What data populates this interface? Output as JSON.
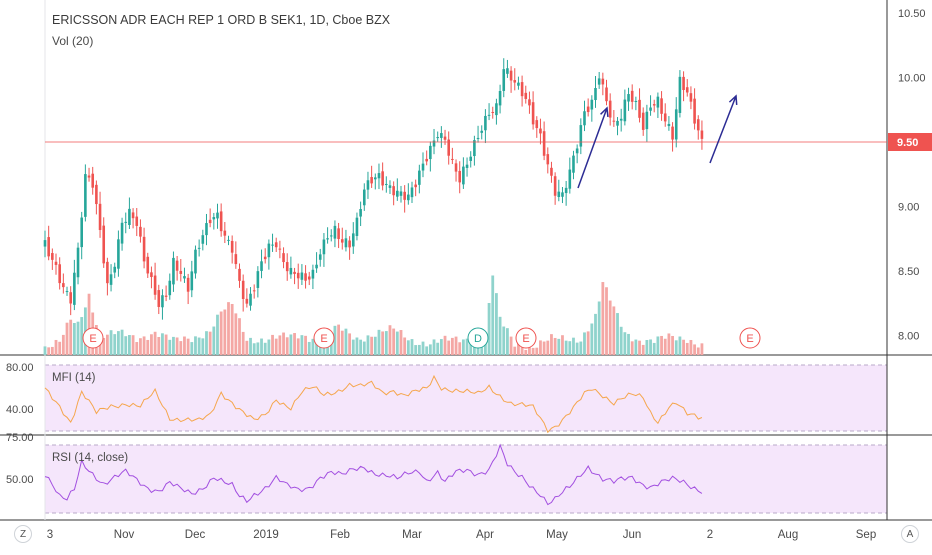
{
  "colors": {
    "up": "#26a69a",
    "down": "#ef5350",
    "volUp": "#8fd3cc",
    "volDown": "#f4a7a4",
    "mfi": "#f5a64d",
    "rsi": "#a24fe0",
    "panelFill": "#f5e6fb",
    "priceLine": "#ef5350",
    "arrow": "#2c2c94"
  },
  "header": {
    "title": "ERICSSON ADR EACH REP 1 ORD B SEK1, 1D, Cboe BZX",
    "vol_label": "Vol (20)"
  },
  "price_label": "9.50",
  "y_ticks": [
    "10.50",
    "10.00",
    "9.50",
    "9.00",
    "8.50",
    "8.00"
  ],
  "mfi": {
    "label": "MFI (14)",
    "ticks": [
      "80.00",
      "40.00"
    ]
  },
  "rsi": {
    "label": "RSI (14, close)",
    "ticks": [
      "75.00",
      "50.00"
    ]
  },
  "x_ticks": [
    "3",
    "Nov",
    "Dec",
    "2019",
    "Feb",
    "Mar",
    "Apr",
    "May",
    "Jun",
    "2",
    "Aug",
    "Sep"
  ],
  "buttons": {
    "left": "Z",
    "right": "A"
  },
  "event_markers": [
    "E",
    "E",
    "D",
    "E",
    "E"
  ],
  "chart_data": {
    "type": "candlestick",
    "title": "ERICSSON ADR EACH REP 1 ORD B SEK1, 1D, Cboe BZX",
    "ylim": [
      7.85,
      10.6
    ],
    "last_price": 9.5,
    "close_anchors": [
      [
        0,
        8.7
      ],
      [
        3,
        8.55
      ],
      [
        5,
        8.4
      ],
      [
        7,
        8.3
      ],
      [
        9,
        8.65
      ],
      [
        11,
        9.2
      ],
      [
        13,
        9.15
      ],
      [
        15,
        8.8
      ],
      [
        17,
        8.4
      ],
      [
        19,
        8.6
      ],
      [
        21,
        8.9
      ],
      [
        23,
        8.95
      ],
      [
        25,
        8.85
      ],
      [
        27,
        8.55
      ],
      [
        29,
        8.4
      ],
      [
        31,
        8.25
      ],
      [
        33,
        8.35
      ],
      [
        35,
        8.6
      ],
      [
        37,
        8.5
      ],
      [
        39,
        8.35
      ],
      [
        41,
        8.6
      ],
      [
        43,
        8.75
      ],
      [
        45,
        8.9
      ],
      [
        47,
        8.95
      ],
      [
        49,
        8.8
      ],
      [
        51,
        8.7
      ],
      [
        53,
        8.4
      ],
      [
        55,
        8.2
      ],
      [
        57,
        8.35
      ],
      [
        59,
        8.55
      ],
      [
        61,
        8.7
      ],
      [
        63,
        8.75
      ],
      [
        65,
        8.6
      ],
      [
        67,
        8.5
      ],
      [
        69,
        8.45
      ],
      [
        71,
        8.4
      ],
      [
        73,
        8.45
      ],
      [
        75,
        8.65
      ],
      [
        77,
        8.8
      ],
      [
        79,
        8.85
      ],
      [
        81,
        8.75
      ],
      [
        83,
        8.7
      ],
      [
        85,
        8.85
      ],
      [
        87,
        9.1
      ],
      [
        89,
        9.2
      ],
      [
        91,
        9.25
      ],
      [
        93,
        9.2
      ],
      [
        95,
        9.15
      ],
      [
        97,
        9.1
      ],
      [
        99,
        9.05
      ],
      [
        101,
        9.15
      ],
      [
        103,
        9.3
      ],
      [
        105,
        9.45
      ],
      [
        107,
        9.6
      ],
      [
        109,
        9.55
      ],
      [
        111,
        9.35
      ],
      [
        113,
        9.2
      ],
      [
        115,
        9.3
      ],
      [
        117,
        9.45
      ],
      [
        119,
        9.6
      ],
      [
        121,
        9.75
      ],
      [
        123,
        9.8
      ],
      [
        125,
        10.1
      ],
      [
        127,
        10.0
      ],
      [
        129,
        9.9
      ],
      [
        131,
        9.8
      ],
      [
        133,
        9.65
      ],
      [
        135,
        9.55
      ],
      [
        137,
        9.35
      ],
      [
        139,
        9.15
      ],
      [
        141,
        9.1
      ],
      [
        143,
        9.25
      ],
      [
        145,
        9.45
      ],
      [
        147,
        9.7
      ],
      [
        149,
        9.8
      ],
      [
        151,
        10.05
      ],
      [
        153,
        9.85
      ],
      [
        155,
        9.65
      ],
      [
        157,
        9.7
      ],
      [
        159,
        9.85
      ],
      [
        161,
        9.75
      ],
      [
        163,
        9.6
      ],
      [
        165,
        9.8
      ],
      [
        167,
        9.85
      ],
      [
        169,
        9.7
      ],
      [
        171,
        9.55
      ],
      [
        173,
        9.95
      ],
      [
        175,
        9.85
      ],
      [
        177,
        9.65
      ],
      [
        179,
        9.5
      ]
    ],
    "volume_anchors": [
      [
        0,
        4
      ],
      [
        4,
        6
      ],
      [
        7,
        18
      ],
      [
        9,
        16
      ],
      [
        12,
        32
      ],
      [
        15,
        10
      ],
      [
        20,
        11
      ],
      [
        25,
        9
      ],
      [
        30,
        12
      ],
      [
        35,
        7
      ],
      [
        40,
        9
      ],
      [
        45,
        13
      ],
      [
        48,
        22
      ],
      [
        51,
        26
      ],
      [
        55,
        9
      ],
      [
        60,
        8
      ],
      [
        65,
        9
      ],
      [
        70,
        11
      ],
      [
        75,
        8
      ],
      [
        80,
        14
      ],
      [
        85,
        9
      ],
      [
        90,
        11
      ],
      [
        95,
        13
      ],
      [
        100,
        8
      ],
      [
        105,
        6
      ],
      [
        108,
        7
      ],
      [
        112,
        8
      ],
      [
        116,
        9
      ],
      [
        120,
        10
      ],
      [
        122,
        42
      ],
      [
        124,
        18
      ],
      [
        128,
        6
      ],
      [
        133,
        5
      ],
      [
        138,
        8
      ],
      [
        142,
        8
      ],
      [
        146,
        9
      ],
      [
        150,
        20
      ],
      [
        152,
        37
      ],
      [
        155,
        24
      ],
      [
        158,
        12
      ],
      [
        162,
        8
      ],
      [
        166,
        7
      ],
      [
        170,
        9
      ],
      [
        175,
        9
      ],
      [
        179,
        5
      ]
    ],
    "mfi_anchors": [
      [
        0,
        62
      ],
      [
        4,
        50
      ],
      [
        7,
        38
      ],
      [
        10,
        60
      ],
      [
        14,
        44
      ],
      [
        18,
        50
      ],
      [
        22,
        52
      ],
      [
        26,
        49
      ],
      [
        30,
        60
      ],
      [
        34,
        41
      ],
      [
        38,
        40
      ],
      [
        42,
        38
      ],
      [
        45,
        42
      ],
      [
        48,
        60
      ],
      [
        51,
        53
      ],
      [
        54,
        45
      ],
      [
        57,
        38
      ],
      [
        60,
        42
      ],
      [
        63,
        55
      ],
      [
        67,
        49
      ],
      [
        70,
        60
      ],
      [
        73,
        63
      ],
      [
        76,
        58
      ],
      [
        80,
        62
      ],
      [
        83,
        66
      ],
      [
        86,
        64
      ],
      [
        89,
        66
      ],
      [
        92,
        60
      ],
      [
        95,
        62
      ],
      [
        98,
        58
      ],
      [
        101,
        60
      ],
      [
        104,
        62
      ],
      [
        106,
        71
      ],
      [
        108,
        64
      ],
      [
        112,
        62
      ],
      [
        115,
        60
      ],
      [
        118,
        58
      ],
      [
        121,
        64
      ],
      [
        124,
        58
      ],
      [
        127,
        52
      ],
      [
        130,
        50
      ],
      [
        133,
        48
      ],
      [
        135,
        40
      ],
      [
        137,
        32
      ],
      [
        139,
        35
      ],
      [
        141,
        40
      ],
      [
        144,
        48
      ],
      [
        147,
        58
      ],
      [
        149,
        62
      ],
      [
        152,
        58
      ],
      [
        155,
        53
      ],
      [
        157,
        56
      ],
      [
        160,
        58
      ],
      [
        163,
        55
      ],
      [
        165,
        44
      ],
      [
        167,
        38
      ],
      [
        170,
        50
      ],
      [
        172,
        53
      ],
      [
        175,
        43
      ],
      [
        178,
        40
      ]
    ],
    "rsi_anchors": [
      [
        0,
        58
      ],
      [
        2,
        52
      ],
      [
        4,
        44
      ],
      [
        6,
        42
      ],
      [
        8,
        48
      ],
      [
        10,
        64
      ],
      [
        12,
        60
      ],
      [
        14,
        56
      ],
      [
        16,
        52
      ],
      [
        19,
        55
      ],
      [
        22,
        58
      ],
      [
        25,
        54
      ],
      [
        28,
        50
      ],
      [
        31,
        48
      ],
      [
        34,
        52
      ],
      [
        37,
        48
      ],
      [
        40,
        46
      ],
      [
        43,
        50
      ],
      [
        46,
        56
      ],
      [
        49,
        52
      ],
      [
        51,
        50
      ],
      [
        53,
        44
      ],
      [
        55,
        42
      ],
      [
        57,
        46
      ],
      [
        60,
        50
      ],
      [
        63,
        55
      ],
      [
        66,
        50
      ],
      [
        69,
        48
      ],
      [
        72,
        50
      ],
      [
        75,
        56
      ],
      [
        78,
        58
      ],
      [
        81,
        56
      ],
      [
        84,
        60
      ],
      [
        87,
        62
      ],
      [
        90,
        58
      ],
      [
        93,
        56
      ],
      [
        96,
        54
      ],
      [
        99,
        58
      ],
      [
        102,
        60
      ],
      [
        104,
        54
      ],
      [
        107,
        58
      ],
      [
        109,
        52
      ],
      [
        112,
        58
      ],
      [
        115,
        60
      ],
      [
        118,
        58
      ],
      [
        121,
        60
      ],
      [
        124,
        72
      ],
      [
        126,
        62
      ],
      [
        128,
        58
      ],
      [
        130,
        56
      ],
      [
        133,
        50
      ],
      [
        135,
        46
      ],
      [
        137,
        40
      ],
      [
        139,
        42
      ],
      [
        141,
        46
      ],
      [
        143,
        50
      ],
      [
        146,
        58
      ],
      [
        148,
        62
      ],
      [
        150,
        58
      ],
      [
        152,
        54
      ],
      [
        155,
        52
      ],
      [
        157,
        54
      ],
      [
        160,
        56
      ],
      [
        163,
        52
      ],
      [
        165,
        50
      ],
      [
        168,
        52
      ],
      [
        171,
        54
      ],
      [
        174,
        53
      ],
      [
        177,
        50
      ],
      [
        179,
        48
      ]
    ],
    "mfi_range": [
      30,
      86
    ],
    "rsi_range": [
      35,
      78
    ],
    "annotations": [
      "arrow-up-may",
      "arrow-up-june"
    ]
  }
}
